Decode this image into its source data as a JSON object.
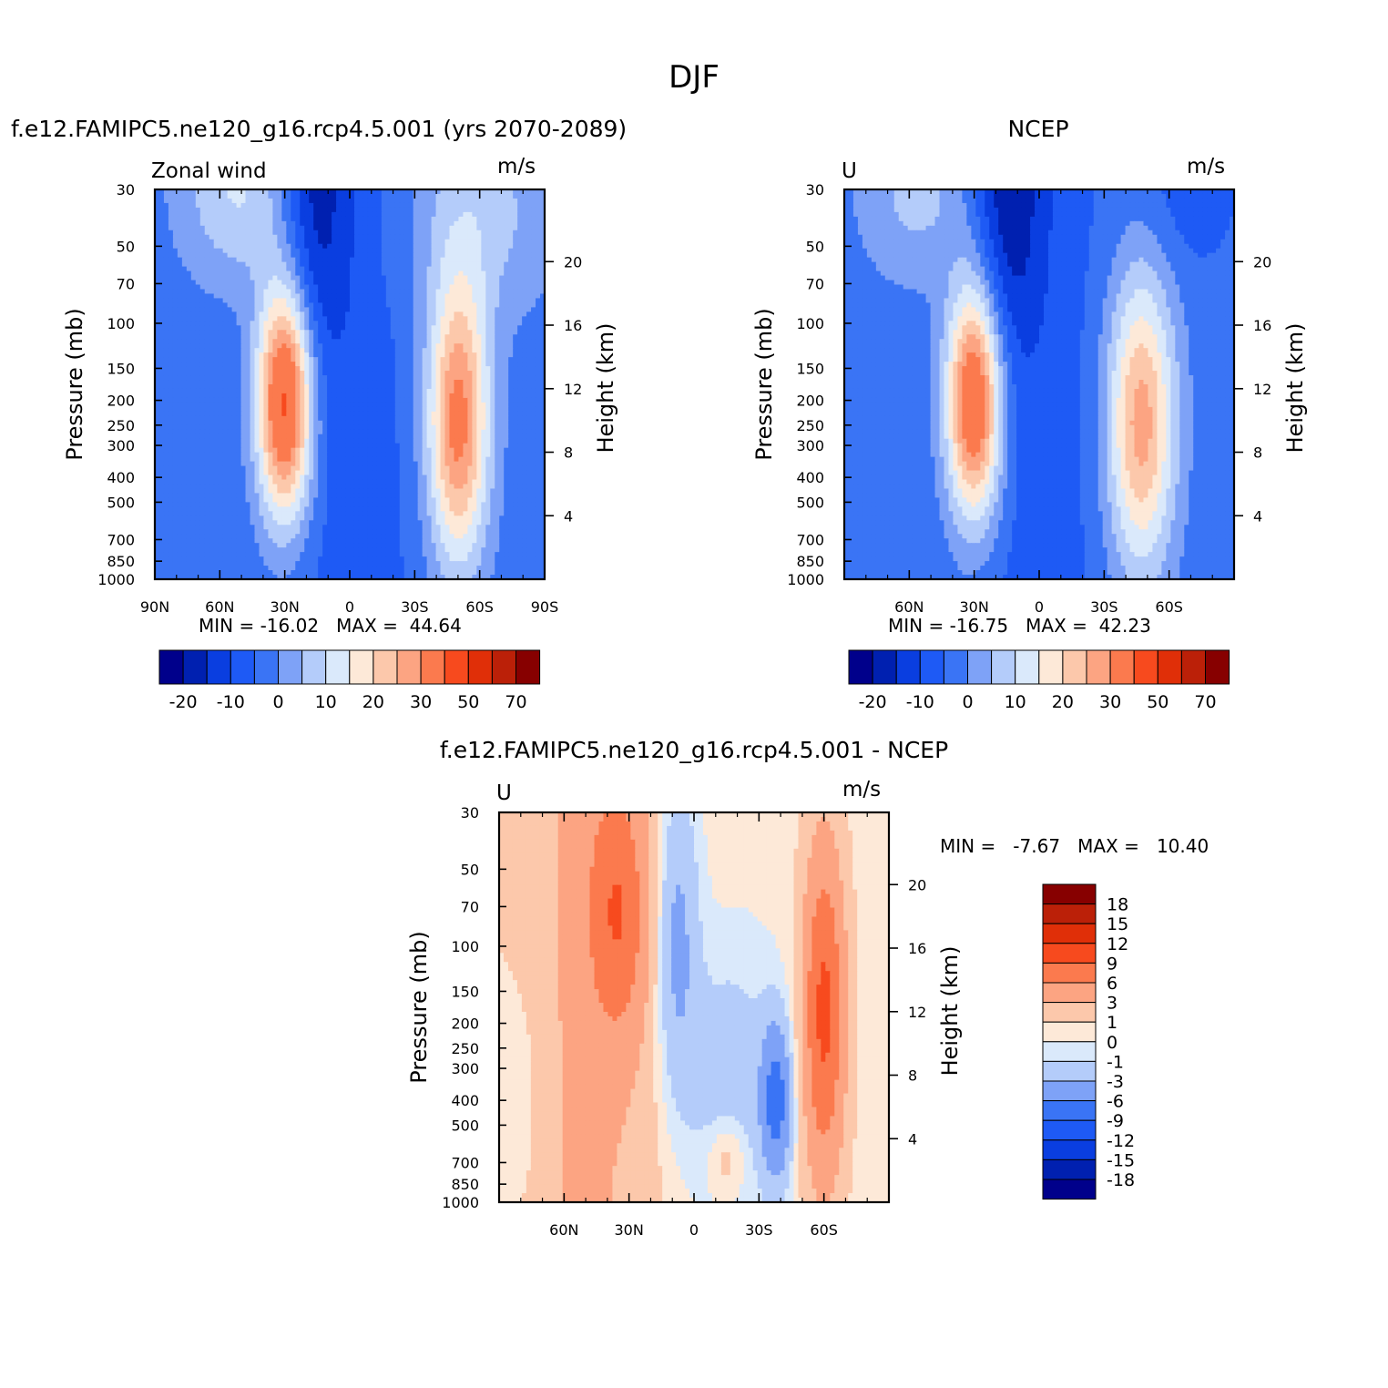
{
  "figure": {
    "title": "DJF",
    "panels": [
      {
        "title": "f.e12.FAMIPC5.ne120_g16.rcp4.5.001 (yrs 2070-2089)",
        "left_label": "Zonal wind",
        "units": "m/s",
        "stats": "MIN = -16.02   MAX =  44.64"
      },
      {
        "title": "NCEP",
        "left_label": "U",
        "units": "m/s",
        "stats": "MIN = -16.75   MAX =  42.23"
      },
      {
        "title": "f.e12.FAMIPC5.ne120_g16.rcp4.5.001 - NCEP",
        "left_label": "U",
        "units": "m/s",
        "stats": "MIN =   -7.67   MAX =   10.40"
      }
    ]
  },
  "chart_data": [
    {
      "type": "heatmap",
      "title": "f.e12.FAMIPC5.ne120_g16.rcp4.5.001 (yrs 2070-2089)",
      "variable": "Zonal wind",
      "units": "m/s",
      "ylabel": "Pressure (mb)",
      "ylabel_right": "Height (km)",
      "y_scale": "log",
      "ylim": [
        1000,
        30
      ],
      "y_ticks": [
        30,
        50,
        70,
        100,
        150,
        200,
        250,
        300,
        400,
        500,
        700,
        850,
        1000
      ],
      "y_right_ticks": [
        4,
        8,
        12,
        16,
        20
      ],
      "xlim": [
        90,
        -90
      ],
      "x_ticks": [
        90,
        60,
        30,
        0,
        -30,
        -60,
        -90
      ],
      "x_tick_labels": [
        "90N",
        "60N",
        "30N",
        "0",
        "30S",
        "60S",
        "90S"
      ],
      "min": -16.02,
      "max": 44.64,
      "colorbar_levels": [
        -25,
        -20,
        -15,
        -10,
        -5,
        0,
        5,
        10,
        15,
        20,
        25,
        30,
        40,
        50,
        60,
        70
      ],
      "colorbar_labels": [
        "-20",
        "-10",
        "0",
        "10",
        "20",
        "30",
        "50",
        "70"
      ],
      "features": [
        {
          "lat": 30,
          "p": 200,
          "peak": 44.64
        },
        {
          "lat": -50,
          "p": 250,
          "peak": 33
        },
        {
          "lat": 17,
          "p": 30,
          "peak": -16.02
        }
      ]
    },
    {
      "type": "heatmap",
      "title": "NCEP",
      "variable": "U",
      "units": "m/s",
      "ylabel": "Pressure (mb)",
      "ylabel_right": "Height (km)",
      "y_scale": "log",
      "ylim": [
        1000,
        30
      ],
      "y_ticks": [
        30,
        50,
        70,
        100,
        150,
        200,
        250,
        300,
        400,
        500,
        700,
        850,
        1000
      ],
      "y_right_ticks": [
        4,
        8,
        12,
        16,
        20
      ],
      "xlim": [
        90,
        -90
      ],
      "x_ticks": [
        60,
        30,
        0,
        -30,
        -60
      ],
      "x_tick_labels": [
        "60N",
        "30N",
        "0",
        "30S",
        "60S"
      ],
      "min": -16.75,
      "max": 42.23,
      "colorbar_levels": [
        -25,
        -20,
        -15,
        -10,
        -5,
        0,
        5,
        10,
        15,
        20,
        25,
        30,
        40,
        50,
        60,
        70
      ],
      "colorbar_labels": [
        "-20",
        "-10",
        "0",
        "10",
        "20",
        "30",
        "50",
        "70"
      ],
      "features": [
        {
          "lat": 30,
          "p": 200,
          "peak": 42.23
        },
        {
          "lat": -47,
          "p": 250,
          "peak": 28
        },
        {
          "lat": 15,
          "p": 30,
          "peak": -16.75
        }
      ]
    },
    {
      "type": "heatmap",
      "title": "f.e12.FAMIPC5.ne120_g16.rcp4.5.001 - NCEP",
      "variable": "U",
      "units": "m/s",
      "ylabel": "Pressure (mb)",
      "ylabel_right": "Height (km)",
      "y_scale": "log",
      "ylim": [
        1000,
        30
      ],
      "y_ticks": [
        30,
        50,
        70,
        100,
        150,
        200,
        250,
        300,
        400,
        500,
        700,
        850,
        1000
      ],
      "y_right_ticks": [
        4,
        8,
        12,
        16,
        20
      ],
      "xlim": [
        90,
        -90
      ],
      "x_ticks": [
        60,
        30,
        0,
        -30,
        -60
      ],
      "x_tick_labels": [
        "60N",
        "30N",
        "0",
        "30S",
        "60S"
      ],
      "min": -7.67,
      "max": 10.4,
      "colorbar_levels": [
        -21,
        -18,
        -15,
        -12,
        -9,
        -6,
        -3,
        -1,
        0,
        1,
        3,
        6,
        9,
        12,
        15,
        18,
        21
      ],
      "colorbar_labels": [
        "18",
        "15",
        "12",
        "9",
        "6",
        "3",
        "1",
        "0",
        "-1",
        "-3",
        "-6",
        "-9",
        "-12",
        "-15",
        "-18"
      ],
      "features": [
        {
          "lat": -60,
          "p": 180,
          "peak": 10.4
        },
        {
          "lat": 35,
          "p": 70,
          "peak": 7
        },
        {
          "lat": 8,
          "p": 70,
          "peak": -5
        },
        {
          "lat": -38,
          "p": 400,
          "peak": -7.67
        }
      ]
    }
  ],
  "palette": {
    "blues_to_reds": [
      "#00008b",
      "#0020b0",
      "#0a3ee0",
      "#1e5af5",
      "#3a74f5",
      "#7ea2f7",
      "#b4ccfa",
      "#dae9fb",
      "#fde9d8",
      "#fcc8ab",
      "#fca482",
      "#fb7a4e",
      "#f74a1e",
      "#e02f08",
      "#bb2008",
      "#870000"
    ]
  }
}
